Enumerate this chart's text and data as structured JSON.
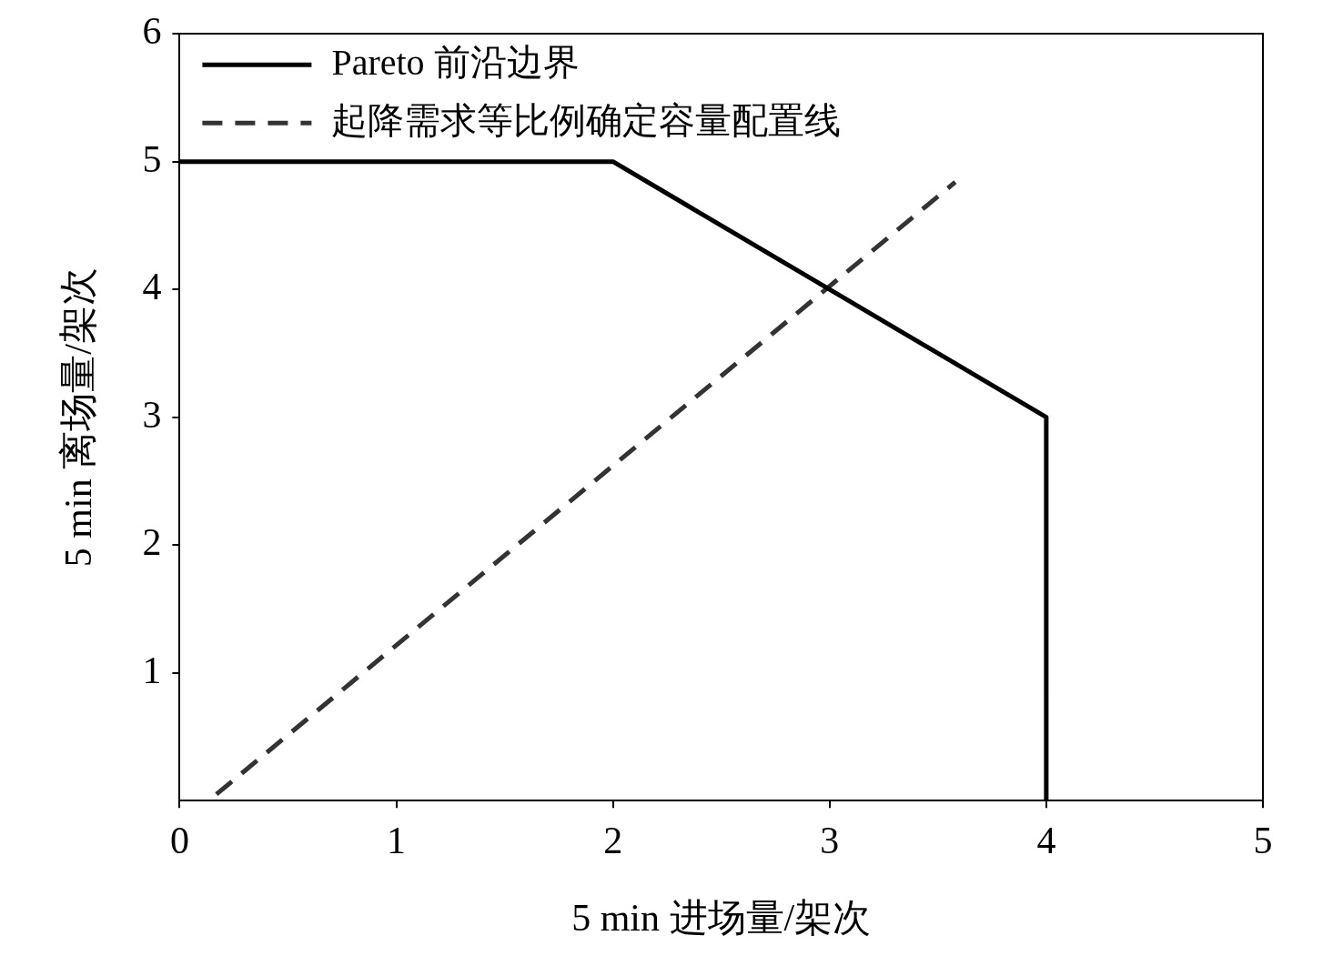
{
  "chart_data": {
    "type": "line",
    "xlabel": "5 min 进场量/架次",
    "ylabel": "5 min 离场量/架次",
    "xlim": [
      0,
      5
    ],
    "xticks": [
      0,
      1,
      2,
      3,
      4,
      5
    ],
    "ylim": [
      0,
      6
    ],
    "yticks": [
      1,
      2,
      3,
      4,
      5,
      6
    ],
    "grid": false,
    "legend": "top left",
    "marker": "none",
    "series": [
      {
        "name": "Pareto 前沿边界",
        "color": "#000000",
        "line_style": "solid",
        "x": [
          0,
          2,
          4,
          4
        ],
        "values": [
          5,
          5,
          3,
          0
        ]
      },
      {
        "name": "起降需求等比例确定容量配置线",
        "color": "#333333",
        "line_style": "dashed",
        "x": [
          0.17,
          3.58
        ],
        "values": [
          0.05,
          4.84
        ]
      }
    ]
  }
}
